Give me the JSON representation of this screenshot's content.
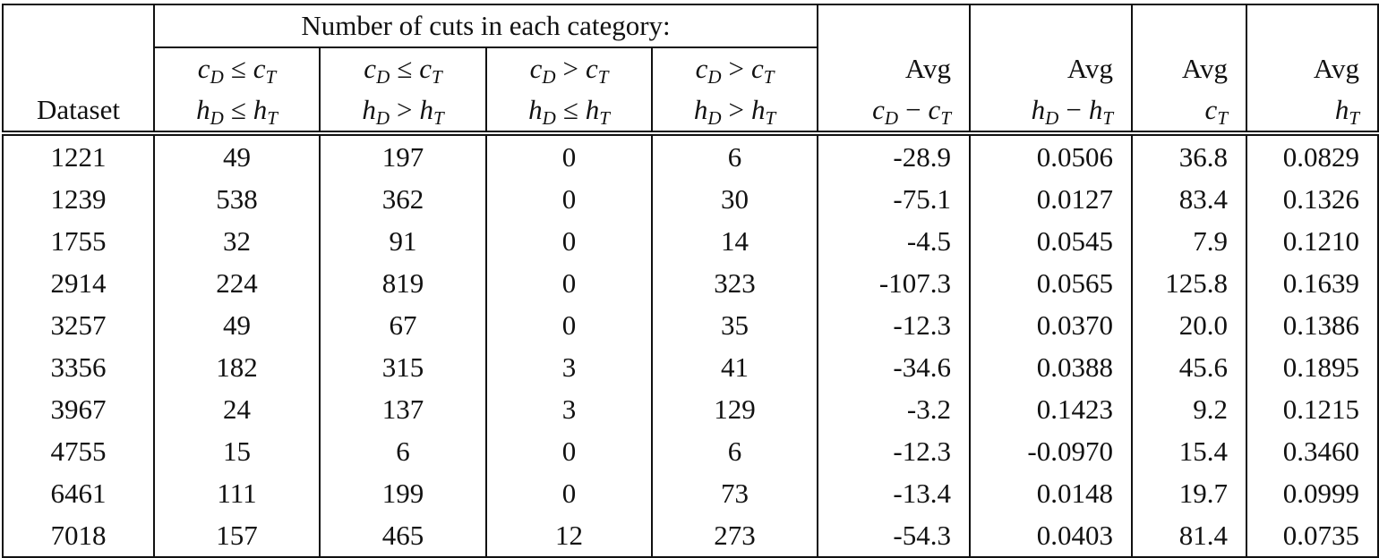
{
  "table": {
    "group_header": "Number of cuts in each category:",
    "columns": [
      {
        "lines": [
          [
            "Dataset"
          ]
        ]
      },
      {
        "lines": [
          [
            {
              "v": "c",
              "s": "D"
            },
            "≤",
            {
              "v": "c",
              "s": "T"
            }
          ],
          [
            {
              "v": "h",
              "s": "D"
            },
            "≤",
            {
              "v": "h",
              "s": "T"
            }
          ]
        ]
      },
      {
        "lines": [
          [
            {
              "v": "c",
              "s": "D"
            },
            "≤",
            {
              "v": "c",
              "s": "T"
            }
          ],
          [
            {
              "v": "h",
              "s": "D"
            },
            ">",
            {
              "v": "h",
              "s": "T"
            }
          ]
        ]
      },
      {
        "lines": [
          [
            {
              "v": "c",
              "s": "D"
            },
            ">",
            {
              "v": "c",
              "s": "T"
            }
          ],
          [
            {
              "v": "h",
              "s": "D"
            },
            "≤",
            {
              "v": "h",
              "s": "T"
            }
          ]
        ]
      },
      {
        "lines": [
          [
            {
              "v": "c",
              "s": "D"
            },
            ">",
            {
              "v": "c",
              "s": "T"
            }
          ],
          [
            {
              "v": "h",
              "s": "D"
            },
            ">",
            {
              "v": "h",
              "s": "T"
            }
          ]
        ]
      },
      {
        "lines": [
          [
            "Avg"
          ],
          [
            {
              "v": "c",
              "s": "D"
            },
            "−",
            {
              "v": "c",
              "s": "T"
            }
          ]
        ]
      },
      {
        "lines": [
          [
            "Avg"
          ],
          [
            {
              "v": "h",
              "s": "D"
            },
            "−",
            {
              "v": "h",
              "s": "T"
            }
          ]
        ]
      },
      {
        "lines": [
          [
            "Avg"
          ],
          [
            {
              "v": "c",
              "s": "T"
            }
          ]
        ]
      },
      {
        "lines": [
          [
            "Avg"
          ],
          [
            {
              "v": "h",
              "s": "T"
            }
          ]
        ]
      }
    ],
    "rows": [
      [
        "1221",
        "49",
        "197",
        "0",
        "6",
        "-28.9",
        "0.0506",
        "36.8",
        "0.0829"
      ],
      [
        "1239",
        "538",
        "362",
        "0",
        "30",
        "-75.1",
        "0.0127",
        "83.4",
        "0.1326"
      ],
      [
        "1755",
        "32",
        "91",
        "0",
        "14",
        "-4.5",
        "0.0545",
        "7.9",
        "0.1210"
      ],
      [
        "2914",
        "224",
        "819",
        "0",
        "323",
        "-107.3",
        "0.0565",
        "125.8",
        "0.1639"
      ],
      [
        "3257",
        "49",
        "67",
        "0",
        "35",
        "-12.3",
        "0.0370",
        "20.0",
        "0.1386"
      ],
      [
        "3356",
        "182",
        "315",
        "3",
        "41",
        "-34.6",
        "0.0388",
        "45.6",
        "0.1895"
      ],
      [
        "3967",
        "24",
        "137",
        "3",
        "129",
        "-3.2",
        "0.1423",
        "9.2",
        "0.1215"
      ],
      [
        "4755",
        "15",
        "6",
        "0",
        "6",
        "-12.3",
        "-0.0970",
        "15.4",
        "0.3460"
      ],
      [
        "6461",
        "111",
        "199",
        "0",
        "73",
        "-13.4",
        "0.0148",
        "19.7",
        "0.0999"
      ],
      [
        "7018",
        "157",
        "465",
        "12",
        "273",
        "-54.3",
        "0.0403",
        "81.4",
        "0.0735"
      ]
    ]
  }
}
